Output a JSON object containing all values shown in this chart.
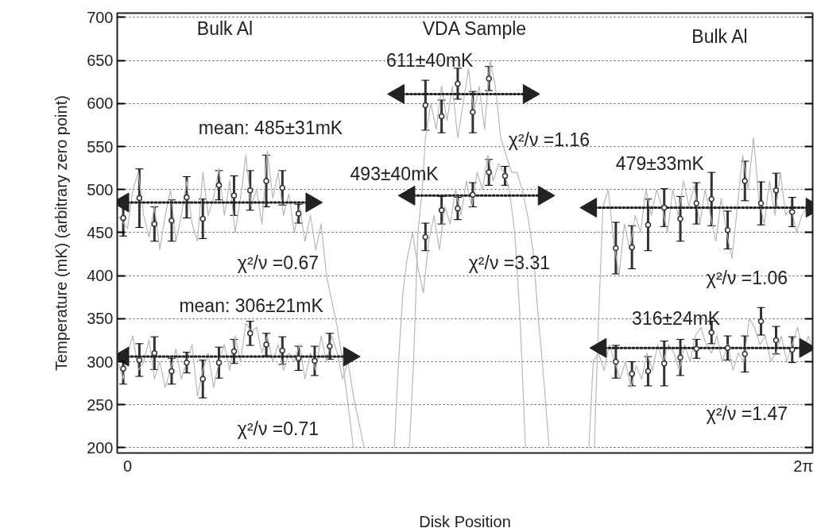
{
  "chart_data": {
    "type": "scatter",
    "xlabel": "Disk Position",
    "ylabel": "Temperature (mK) (arbitrary zero point)",
    "xlim": [
      -0.096,
      6.37
    ],
    "xticks": [
      0,
      {
        "value": 6.2832,
        "label": "2π"
      }
    ],
    "ylim": [
      194,
      705
    ],
    "yticks": [
      200,
      250,
      300,
      350,
      400,
      450,
      500,
      550,
      600,
      650,
      700
    ],
    "grid": "y",
    "series": [
      {
        "type": "line",
        "color": "#b8b8b8",
        "x": [
          -0.09,
          0,
          0.05,
          0.1,
          0.15,
          0.2,
          0.25,
          0.3,
          0.35,
          0.4,
          0.45,
          0.5,
          0.55,
          0.6,
          0.65,
          0.7,
          0.75,
          0.8,
          0.85,
          0.9,
          0.95,
          1.0,
          1.05,
          1.1,
          1.15,
          1.2,
          1.25,
          1.3,
          1.35,
          1.4,
          1.45,
          1.5,
          1.55,
          1.6,
          1.65,
          1.7,
          1.75,
          1.8,
          1.85,
          1.9,
          1.95,
          2.0,
          2.05,
          2.1,
          2.3,
          2.62,
          2.66,
          2.7,
          2.74,
          2.77,
          2.82,
          2.87,
          2.92,
          2.97,
          3.02,
          3.07,
          3.12,
          3.17,
          3.22,
          3.27,
          3.32,
          3.37,
          3.42,
          3.47,
          3.52,
          3.57,
          3.62,
          3.67,
          3.72,
          3.77,
          3.82,
          3.87,
          3.92,
          4.1,
          4.34,
          4.38,
          4.42,
          4.47,
          4.52,
          4.57,
          4.62,
          4.67,
          4.72,
          4.77,
          4.82,
          4.87,
          4.92,
          4.97,
          5.02,
          5.07,
          5.12,
          5.17,
          5.22,
          5.27,
          5.32,
          5.37,
          5.42,
          5.47,
          5.52,
          5.57,
          5.62,
          5.67,
          5.72,
          5.77,
          5.82,
          5.87,
          5.92,
          5.97,
          6.02,
          6.07,
          6.12,
          6.17,
          6.22,
          6.27,
          6.32,
          6.36
        ],
        "values": [
          470,
          455,
          500,
          520,
          470,
          445,
          480,
          430,
          470,
          500,
          440,
          470,
          510,
          460,
          440,
          520,
          470,
          490,
          525,
          470,
          510,
          450,
          490,
          540,
          480,
          500,
          460,
          545,
          490,
          520,
          470,
          495,
          450,
          480,
          440,
          470,
          430,
          460,
          400,
          370,
          340,
          300,
          250,
          200,
          null,
          200,
          300,
          450,
          500,
          560,
          600,
          570,
          620,
          580,
          620,
          560,
          600,
          640,
          590,
          620,
          570,
          650,
          620,
          560,
          540,
          520,
          520,
          500,
          470,
          430,
          350,
          280,
          200,
          null,
          200,
          350,
          480,
          500,
          440,
          400,
          460,
          430,
          470,
          450,
          500,
          470,
          500,
          480,
          450,
          500,
          470,
          510,
          480,
          505,
          460,
          500,
          470,
          440,
          490,
          450,
          420,
          480,
          540,
          500,
          560,
          490,
          460,
          510,
          470,
          520,
          470,
          480,
          450,
          470,
          480,
          470
        ]
      },
      {
        "type": "line",
        "color": "#b8b8b8",
        "x": [
          -0.09,
          -0.04,
          0,
          0.05,
          0.1,
          0.15,
          0.2,
          0.25,
          0.3,
          0.35,
          0.4,
          0.45,
          0.5,
          0.55,
          0.6,
          0.65,
          0.7,
          0.75,
          0.8,
          0.85,
          0.9,
          0.95,
          1.0,
          1.05,
          1.1,
          1.15,
          1.2,
          1.25,
          1.3,
          1.35,
          1.4,
          1.45,
          1.5,
          1.55,
          1.6,
          1.65,
          1.7,
          1.75,
          1.8,
          1.85,
          1.9,
          1.95,
          2.0,
          2.05,
          2.1,
          2.15,
          2.2,
          2.35,
          2.48,
          2.52,
          2.56,
          2.6,
          2.65,
          2.7,
          2.75,
          2.8,
          2.85,
          2.9,
          2.95,
          3.0,
          3.05,
          3.1,
          3.15,
          3.2,
          3.25,
          3.3,
          3.35,
          3.4,
          3.45,
          3.5,
          3.55,
          3.6,
          3.65,
          3.7,
          4.0,
          4.29,
          4.33,
          4.38,
          4.43,
          4.48,
          4.53,
          4.58,
          4.63,
          4.68,
          4.73,
          4.78,
          4.83,
          4.88,
          4.93,
          4.98,
          5.03,
          5.08,
          5.13,
          5.18,
          5.23,
          5.28,
          5.33,
          5.38,
          5.43,
          5.48,
          5.53,
          5.58,
          5.63,
          5.68,
          5.73,
          5.78,
          5.83,
          5.88,
          5.93,
          5.98,
          6.03,
          6.08,
          6.13,
          6.18,
          6.23,
          6.28,
          6.33,
          6.36
        ],
        "values": [
          300,
          280,
          310,
          330,
          290,
          300,
          325,
          280,
          300,
          270,
          290,
          315,
          280,
          300,
          320,
          260,
          290,
          310,
          270,
          300,
          320,
          290,
          330,
          300,
          345,
          335,
          340,
          310,
          330,
          300,
          320,
          290,
          310,
          300,
          320,
          280,
          310,
          290,
          330,
          300,
          330,
          310,
          280,
          300,
          260,
          230,
          200,
          null,
          200,
          300,
          380,
          420,
          450,
          410,
          380,
          440,
          470,
          430,
          480,
          460,
          500,
          470,
          510,
          480,
          520,
          500,
          540,
          510,
          530,
          520,
          500,
          450,
          350,
          200,
          null,
          200,
          300,
          310,
          290,
          320,
          300,
          280,
          300,
          270,
          295,
          280,
          310,
          290,
          320,
          300,
          320,
          310,
          290,
          320,
          300,
          330,
          340,
          320,
          310,
          330,
          300,
          320,
          290,
          310,
          300,
          350,
          340,
          320,
          330,
          300,
          310,
          330,
          300,
          320,
          340,
          310,
          330,
          320
        ]
      },
      {
        "type": "line",
        "color": "#222222",
        "line_style": "dotted",
        "marker": "triangle",
        "x": [
          -0.04,
          1.71
        ],
        "values": [
          485,
          485
        ]
      },
      {
        "type": "line",
        "color": "#222222",
        "line_style": "dotted",
        "marker": "triangle",
        "x": [
          -0.04,
          2.06
        ],
        "values": [
          306,
          306
        ]
      },
      {
        "type": "line",
        "color": "#222222",
        "line_style": "dotted",
        "marker": "triangle",
        "x": [
          2.52,
          3.73
        ],
        "values": [
          611,
          611
        ]
      },
      {
        "type": "line",
        "color": "#222222",
        "line_style": "dotted",
        "marker": "triangle",
        "x": [
          2.62,
          3.87
        ],
        "values": [
          493,
          493
        ]
      },
      {
        "type": "line",
        "color": "#222222",
        "line_style": "dotted",
        "marker": "triangle",
        "x": [
          4.31,
          6.36
        ],
        "values": [
          479,
          479
        ]
      },
      {
        "type": "line",
        "color": "#222222",
        "line_style": "dotted",
        "marker": "triangle",
        "x": [
          4.4,
          6.3
        ],
        "values": [
          316,
          316
        ]
      },
      {
        "marker": "circle",
        "color": "#333333",
        "x": [
          -0.04,
          0.11,
          0.25,
          0.41,
          0.55,
          0.7,
          0.85,
          0.99,
          1.14,
          1.29,
          1.44,
          1.59
        ],
        "values": [
          467,
          490,
          460,
          464,
          491,
          466,
          505,
          493,
          499,
          510,
          502,
          472
        ],
        "errors": [
          21,
          34,
          20,
          24,
          24,
          23,
          17,
          23,
          23,
          30,
          20,
          11
        ]
      },
      {
        "marker": "circle",
        "color": "#333333",
        "x": [
          -0.04,
          0.11,
          0.25,
          0.41,
          0.55,
          0.7,
          0.85,
          0.99,
          1.14,
          1.29,
          1.44,
          1.59,
          1.74,
          1.88
        ],
        "values": [
          292,
          302,
          310,
          289,
          299,
          280,
          299,
          312,
          333,
          320,
          313,
          304,
          301,
          318
        ],
        "errors": [
          18,
          19,
          19,
          15,
          12,
          22,
          18,
          14,
          14,
          13,
          16,
          14,
          17,
          15
        ]
      },
      {
        "marker": "circle",
        "color": "#333333",
        "x": [
          2.77,
          2.92,
          3.07,
          3.21,
          3.36
        ],
        "values": [
          598,
          585,
          623,
          590,
          629
        ],
        "errors": [
          29,
          19,
          18,
          24,
          14
        ]
      },
      {
        "marker": "circle",
        "color": "#333333",
        "x": [
          2.77,
          2.92,
          3.07,
          3.21,
          3.36,
          3.51
        ],
        "values": [
          445,
          476,
          478,
          494,
          520,
          516
        ],
        "errors": [
          16,
          16,
          13,
          14,
          15,
          11
        ]
      },
      {
        "marker": "circle",
        "color": "#333333",
        "x": [
          4.54,
          4.69,
          4.84,
          4.99,
          5.14,
          5.29,
          5.43,
          5.58,
          5.74,
          5.89,
          6.03,
          6.18
        ],
        "values": [
          432,
          433,
          459,
          479,
          466,
          484,
          489,
          453,
          510,
          484,
          499,
          474
        ],
        "errors": [
          30,
          25,
          30,
          22,
          26,
          24,
          31,
          22,
          23,
          25,
          20,
          17
        ]
      },
      {
        "marker": "circle",
        "color": "#333333",
        "x": [
          4.54,
          4.69,
          4.84,
          4.99,
          5.14,
          5.29,
          5.43,
          5.58,
          5.74,
          5.89,
          6.03,
          6.18
        ],
        "values": [
          300,
          286,
          289,
          298,
          305,
          315,
          334,
          316,
          309,
          347,
          325,
          314
        ],
        "errors": [
          19,
          14,
          17,
          26,
          21,
          11,
          13,
          14,
          21,
          16,
          16,
          15
        ]
      }
    ],
    "annotations": [
      "Bulk Al",
      "VDA Sample",
      "Bulk Al",
      "mean: 485±31mK",
      "χ²/ν =0.67",
      "mean: 306±21mK",
      "χ²/ν =0.71",
      "611±40mK",
      "χ²/ν =1.16",
      "493±40mK",
      "χ²/ν =3.31",
      "479±33mK",
      "χ²/ν =1.06",
      "316±24mK",
      "χ²/ν =1.47"
    ]
  }
}
